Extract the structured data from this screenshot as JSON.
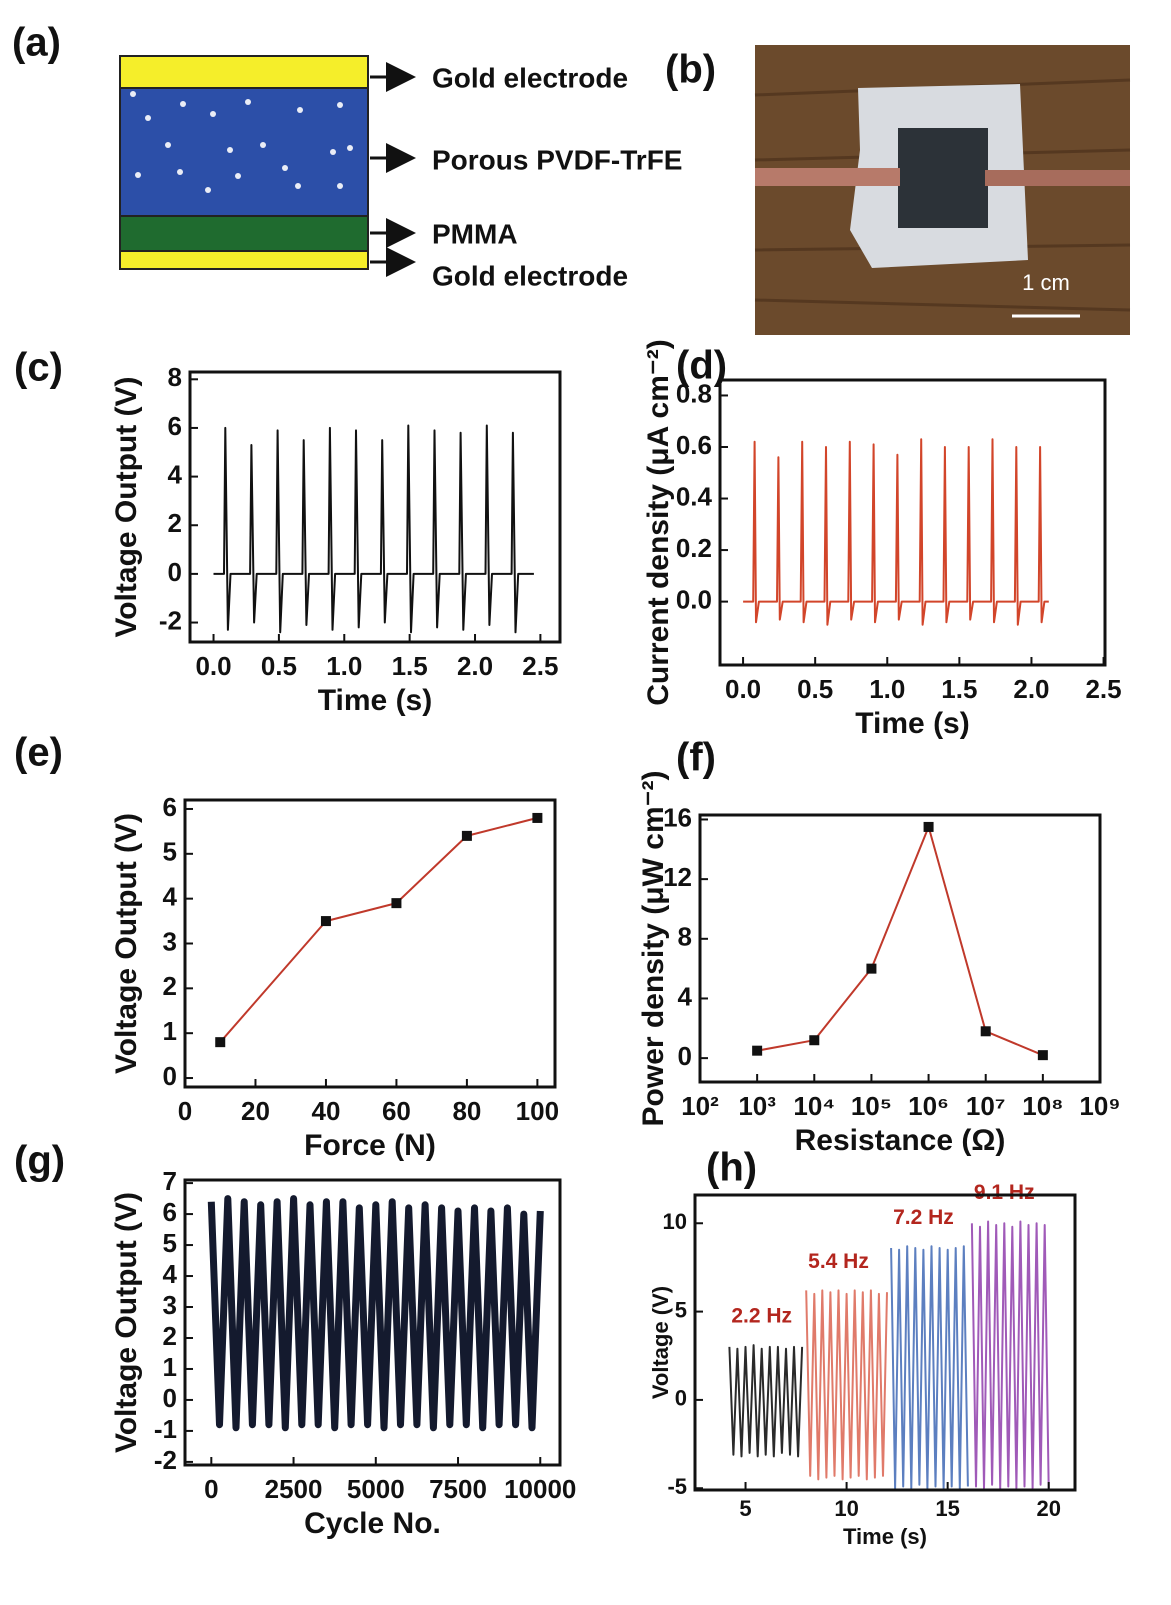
{
  "diagram": {
    "panel_label": "(a)",
    "layers": [
      "Gold electrode",
      "Porous PVDF-TrFE",
      "PMMA",
      "Gold electrode"
    ]
  },
  "photo": {
    "panel_label": "(b)",
    "scale_bar_label": "1 cm"
  },
  "chart_data": [
    {
      "type": "line",
      "panel_label": "(c)",
      "xlabel": "Time (s)",
      "ylabel": "Voltage Output (V)",
      "xlim": [
        -0.18,
        2.65
      ],
      "ylim": [
        -2.8,
        8.3
      ],
      "xticks": [
        {
          "value": 0,
          "label": "0.0"
        },
        0.5,
        {
          "value": 1,
          "label": "1.0"
        },
        1.5,
        {
          "value": 2,
          "label": "2.0"
        },
        2.5
      ],
      "yticks": [
        -2,
        0,
        2,
        4,
        6,
        8
      ],
      "series": [
        {
          "color": "#111111",
          "x": [
            0,
            0.08,
            0.09,
            0.11,
            0.13,
            0.28,
            0.29,
            0.31,
            0.33,
            0.48,
            0.49,
            0.51,
            0.53,
            0.68,
            0.69,
            0.71,
            0.73,
            0.88,
            0.89,
            0.91,
            0.93,
            1.08,
            1.09,
            1.11,
            1.13,
            1.28,
            1.29,
            1.31,
            1.33,
            1.48,
            1.49,
            1.51,
            1.53,
            1.68,
            1.69,
            1.71,
            1.73,
            1.88,
            1.89,
            1.91,
            1.93,
            2.08,
            2.09,
            2.11,
            2.13,
            2.28,
            2.29,
            2.31,
            2.33,
            2.45
          ],
          "values": [
            0,
            0,
            6.0,
            -2.3,
            0,
            0,
            5.3,
            -2.0,
            0,
            0,
            5.9,
            -2.4,
            0,
            0,
            5.5,
            -2.1,
            0,
            0,
            6.0,
            -2.3,
            0,
            0,
            5.9,
            -2.2,
            0,
            0,
            5.5,
            -2.0,
            0,
            0,
            6.1,
            -2.4,
            0,
            0,
            5.9,
            -2.2,
            0,
            0,
            5.8,
            -2.3,
            0,
            0,
            6.1,
            -2.1,
            0,
            0,
            5.8,
            -2.4,
            0,
            0
          ]
        }
      ]
    },
    {
      "type": "line",
      "panel_label": "(d)",
      "xlabel": "Time (s)",
      "ylabel": "Current density (μA cm⁻²)",
      "xlim": [
        -0.16,
        2.51
      ],
      "ylim": [
        -0.246,
        0.86
      ],
      "xticks": [
        {
          "value": 0,
          "label": "0.0"
        },
        0.5,
        {
          "value": 1,
          "label": "1.0"
        },
        1.5,
        {
          "value": 2,
          "label": "2.0"
        },
        2.5
      ],
      "yticks": [
        {
          "value": 0,
          "label": "0.0"
        },
        0.2,
        0.4,
        0.6,
        0.8
      ],
      "series": [
        {
          "color": "#d2452a",
          "x": [
            0,
            0.07,
            0.08,
            0.09,
            0.11,
            0.235,
            0.245,
            0.255,
            0.275,
            0.4,
            0.41,
            0.42,
            0.44,
            0.565,
            0.575,
            0.585,
            0.605,
            0.73,
            0.74,
            0.75,
            0.77,
            0.895,
            0.905,
            0.915,
            0.935,
            1.06,
            1.07,
            1.08,
            1.1,
            1.225,
            1.235,
            1.245,
            1.265,
            1.39,
            1.4,
            1.41,
            1.43,
            1.555,
            1.565,
            1.575,
            1.595,
            1.72,
            1.73,
            1.74,
            1.76,
            1.885,
            1.895,
            1.905,
            1.925,
            2.05,
            2.06,
            2.07,
            2.09,
            2.12
          ],
          "values": [
            0,
            0,
            0.62,
            -0.08,
            0,
            0,
            0.56,
            -0.07,
            0,
            0,
            0.62,
            -0.08,
            0,
            0,
            0.6,
            -0.09,
            0,
            0,
            0.62,
            -0.07,
            0,
            0,
            0.61,
            -0.08,
            0,
            0,
            0.57,
            -0.07,
            0,
            0,
            0.63,
            -0.09,
            0,
            0,
            0.6,
            -0.08,
            0,
            0,
            0.6,
            -0.07,
            0,
            0,
            0.63,
            -0.08,
            0,
            0,
            0.6,
            -0.09,
            0,
            0,
            0.6,
            -0.08,
            0,
            0
          ]
        }
      ]
    },
    {
      "type": "line",
      "panel_label": "(e)",
      "xlabel": "Force (N)",
      "ylabel": "Voltage Output (V)",
      "markers": true,
      "xlim": [
        0,
        105
      ],
      "ylim": [
        -0.2,
        6.2
      ],
      "xticks": [
        0,
        20,
        40,
        60,
        80,
        100
      ],
      "yticks": [
        0,
        1,
        2,
        3,
        4,
        5,
        6
      ],
      "series": [
        {
          "color": "#c0392b",
          "marker_color": "#111111",
          "x": [
            10,
            40,
            60,
            80,
            100
          ],
          "values": [
            0.8,
            3.5,
            3.9,
            5.4,
            5.8
          ]
        }
      ]
    },
    {
      "type": "line",
      "panel_label": "(f)",
      "xlabel": "Resistance (Ω)",
      "ylabel": "Power density (μW cm⁻²)",
      "markers": true,
      "xscale": "log",
      "xlim": [
        100,
        1000000000
      ],
      "ylim": [
        -1.6,
        16.3
      ],
      "xticks": [
        {
          "value": 100,
          "label": "10²"
        },
        {
          "value": 1000,
          "label": "10³"
        },
        {
          "value": 10000,
          "label": "10⁴"
        },
        {
          "value": 100000,
          "label": "10⁵"
        },
        {
          "value": 1000000,
          "label": "10⁶"
        },
        {
          "value": 10000000,
          "label": "10⁷"
        },
        {
          "value": 100000000,
          "label": "10⁸"
        },
        {
          "value": 1000000000,
          "label": "10⁹"
        }
      ],
      "yticks": [
        0,
        4,
        8,
        12,
        16
      ],
      "series": [
        {
          "color": "#c0392b",
          "marker_color": "#111111",
          "x": [
            1000,
            10000,
            100000,
            1000000,
            10000000,
            100000000
          ],
          "values": [
            0.5,
            1.2,
            6,
            15.5,
            1.8,
            0.2
          ]
        }
      ]
    },
    {
      "type": "line",
      "panel_label": "(g)",
      "xlabel": "Cycle No.",
      "ylabel": "Voltage Output (V)",
      "line_width": 7,
      "xlim": [
        -800,
        10600
      ],
      "ylim": [
        -2.1,
        7.1
      ],
      "xticks": [
        0,
        2500,
        5000,
        7500,
        10000
      ],
      "yticks": [
        -2,
        -1,
        0,
        1,
        2,
        3,
        4,
        5,
        6,
        7
      ],
      "series": [
        {
          "color": "#141a2e",
          "x": [
            0,
            250,
            500,
            750,
            1000,
            1250,
            1500,
            1750,
            2000,
            2250,
            2500,
            2750,
            3000,
            3250,
            3500,
            3750,
            4000,
            4250,
            4500,
            4750,
            5000,
            5250,
            5500,
            5750,
            6000,
            6250,
            6500,
            6750,
            7000,
            7250,
            7500,
            7750,
            8000,
            8250,
            8500,
            8750,
            9000,
            9250,
            9500,
            9750,
            10000
          ],
          "values": [
            6.4,
            -0.8,
            6.5,
            -0.9,
            6.4,
            -0.8,
            6.3,
            -0.8,
            6.4,
            -0.9,
            6.5,
            -0.8,
            6.3,
            -0.8,
            6.4,
            -0.9,
            6.4,
            -0.8,
            6.2,
            -0.8,
            6.3,
            -0.9,
            6.4,
            -0.8,
            6.2,
            -0.8,
            6.3,
            -0.9,
            6.2,
            -0.8,
            6.1,
            -0.8,
            6.2,
            -0.9,
            6.1,
            -0.8,
            6.2,
            -0.8,
            6.0,
            -0.9,
            6.1
          ]
        }
      ]
    },
    {
      "type": "line",
      "panel_label": "(h)",
      "xlabel": "Time (s)",
      "ylabel": "Voltage (V)",
      "small": true,
      "series_labels": true,
      "xlim": [
        2.5,
        21.3
      ],
      "ylim": [
        -5.1,
        11.6
      ],
      "xticks": [
        5,
        10,
        15,
        20
      ],
      "yticks": [
        -5,
        0,
        5,
        10
      ],
      "series": [
        {
          "name": "2.2 Hz",
          "color": "#2a2a2a",
          "label_color": "#b3261e",
          "x": [
            4.2,
            4.4,
            4.6,
            4.8,
            5.0,
            5.2,
            5.4,
            5.6,
            5.8,
            6.0,
            6.2,
            6.4,
            6.6,
            6.8,
            7.0,
            7.2,
            7.4,
            7.6,
            7.8
          ],
          "values": [
            3.0,
            -3.1,
            2.9,
            -3.2,
            3.0,
            -3.0,
            3.1,
            -3.2,
            2.9,
            -3.1,
            3.0,
            -3.2,
            3.0,
            -3.0,
            2.9,
            -3.1,
            3.0,
            -3.2,
            3.0
          ]
        },
        {
          "name": "5.4 Hz",
          "color": "#e07a6a",
          "label_color": "#b3261e",
          "x": [
            8.0,
            8.2,
            8.4,
            8.6,
            8.8,
            9.0,
            9.2,
            9.4,
            9.6,
            9.8,
            10.0,
            10.2,
            10.4,
            10.6,
            10.8,
            11.0,
            11.2,
            11.4,
            11.6,
            11.8,
            12.0
          ],
          "values": [
            6.2,
            -4.3,
            6.0,
            -4.5,
            6.2,
            -4.4,
            6.1,
            -4.3,
            6.2,
            -4.5,
            6.0,
            -4.4,
            6.2,
            -4.3,
            6.1,
            -4.5,
            6.2,
            -4.4,
            6.0,
            -4.3,
            6.1
          ]
        },
        {
          "name": "7.2 Hz",
          "color": "#5c7fc0",
          "label_color": "#b3261e",
          "x": [
            12.2,
            12.4,
            12.6,
            12.8,
            13.0,
            13.2,
            13.4,
            13.6,
            13.8,
            14.0,
            14.2,
            14.4,
            14.6,
            14.8,
            15.0,
            15.2,
            15.4,
            15.6,
            15.8,
            16.0
          ],
          "values": [
            8.6,
            -5.0,
            8.5,
            -4.9,
            8.7,
            -5.0,
            8.6,
            -4.8,
            8.5,
            -5.0,
            8.7,
            -4.9,
            8.6,
            -5.0,
            8.5,
            -4.9,
            8.6,
            -5.0,
            8.7,
            -4.9
          ]
        },
        {
          "name": "9.1 Hz",
          "color": "#a05ab8",
          "label_color": "#b3261e",
          "x": [
            16.2,
            16.4,
            16.6,
            16.8,
            17.0,
            17.2,
            17.4,
            17.6,
            17.8,
            18.0,
            18.2,
            18.4,
            18.6,
            18.8,
            19.0,
            19.2,
            19.4,
            19.6,
            19.8,
            20.0
          ],
          "values": [
            10.0,
            -4.9,
            9.8,
            -5.0,
            10.1,
            -4.8,
            9.9,
            -5.0,
            10.0,
            -4.9,
            9.8,
            -5.0,
            10.1,
            -4.9,
            9.9,
            -5.0,
            10.0,
            -4.8,
            9.9,
            -5.0
          ]
        }
      ]
    }
  ]
}
